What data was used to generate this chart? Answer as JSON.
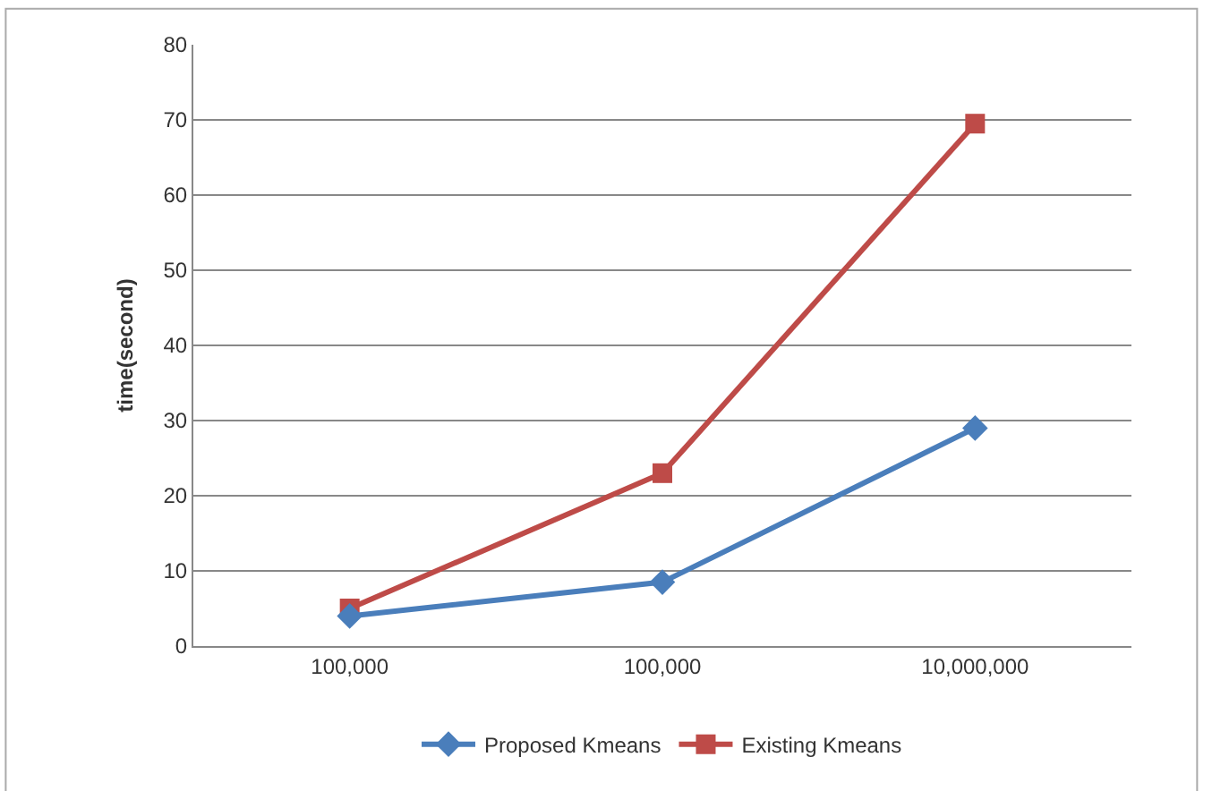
{
  "chart_data": {
    "type": "line",
    "ylabel": "time(second)",
    "categories": [
      "100,000",
      "100,000",
      "10,000,000"
    ],
    "series": [
      {
        "name": "Proposed Kmeans",
        "color": "#4a7ebb",
        "marker": "diamond",
        "values": [
          4,
          8.5,
          29
        ]
      },
      {
        "name": "Existing Kmeans",
        "color": "#be4b48",
        "marker": "square",
        "values": [
          5,
          23,
          69.5
        ]
      }
    ],
    "ylim": [
      0,
      80
    ],
    "yticks": [
      0,
      10,
      20,
      30,
      40,
      50,
      60,
      70,
      80
    ],
    "grid": "y",
    "legend": "bottom",
    "line_style": "solid"
  }
}
